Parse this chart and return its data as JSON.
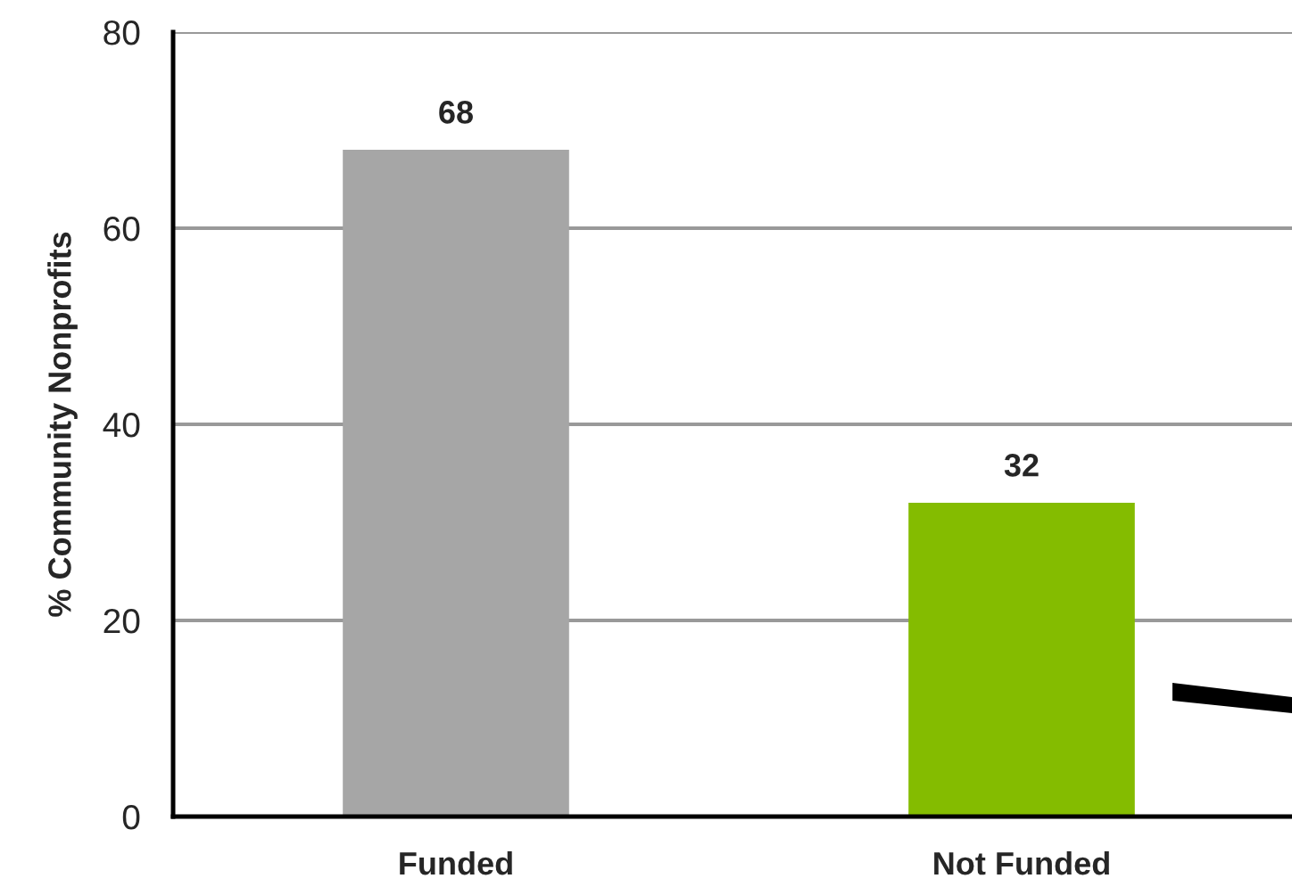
{
  "chart_data": {
    "type": "bar",
    "ylabel": "% Community Nonprofits",
    "categories": [
      "Funded",
      "Not Funded"
    ],
    "values": [
      68,
      32
    ],
    "colors": [
      "#a6a6a6",
      "#84bc00"
    ],
    "ylim": [
      0,
      80
    ],
    "yticks": [
      0,
      20,
      40,
      60,
      80
    ],
    "grid": "y",
    "data_labels": true
  }
}
